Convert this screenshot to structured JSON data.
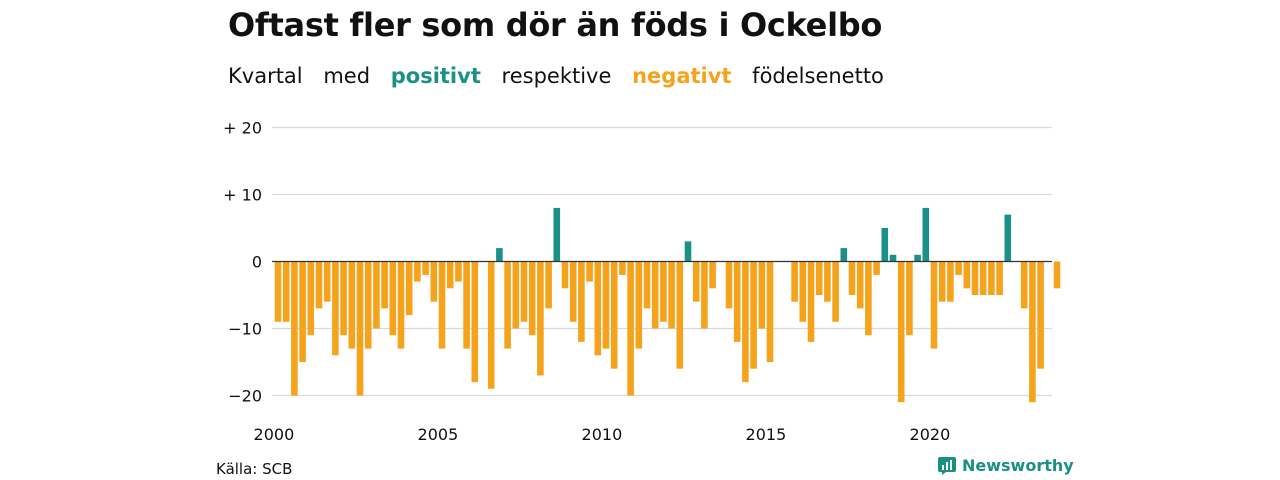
{
  "title": "Oftast fler som dör än föds i Ockelbo",
  "subtitle": {
    "part1": "Kvartal",
    "part2": "med",
    "positive_word": "positivt",
    "part3": "respektive",
    "negative_word": "negativt",
    "part4": "födelsenetto"
  },
  "source": "Källa: SCB",
  "brand": {
    "name": "Newsworthy",
    "icon": "newsworthy-logo-icon"
  },
  "colors": {
    "positive": "#1a9088",
    "negative": "#f5a21c",
    "grid": "#d9d9d9",
    "zero": "#333333"
  },
  "chart_data": {
    "type": "bar",
    "title": "Oftast fler som dör än föds i Ockelbo",
    "xlabel": "",
    "ylabel": "",
    "ylim": [
      -22,
      20
    ],
    "y_ticks": [
      20,
      10,
      0,
      -10,
      -20
    ],
    "y_tick_labels": [
      "+ 20",
      "+ 10",
      "0",
      "−10",
      "−20"
    ],
    "x_ticks": [
      2000,
      2005,
      2010,
      2015,
      2020
    ],
    "x_tick_labels": [
      "2000",
      "2005",
      "2010",
      "2015",
      "2020"
    ],
    "start": "2000 Q1",
    "frequency": "quarterly",
    "values": [
      -9,
      -9,
      -20,
      -15,
      -11,
      -7,
      -6,
      -14,
      -11,
      -13,
      -20,
      -13,
      -10,
      -7,
      -11,
      -13,
      -8,
      -3,
      -2,
      -6,
      -13,
      -4,
      -3,
      -13,
      -18,
      0,
      -19,
      2,
      -13,
      -10,
      -9,
      -11,
      -17,
      -7,
      8,
      -4,
      -9,
      -12,
      -3,
      -14,
      -13,
      -16,
      -2,
      -20,
      -13,
      -7,
      -10,
      -9,
      -10,
      -16,
      3,
      -6,
      -10,
      -4,
      0,
      -7,
      -12,
      -18,
      -16,
      -10,
      -15,
      0,
      0,
      -6,
      -9,
      -12,
      -5,
      -6,
      -9,
      2,
      -5,
      -7,
      -11,
      -2,
      5,
      1,
      -21,
      -11,
      1,
      8,
      -13,
      -6,
      -6,
      -2,
      -4,
      -5,
      -5,
      -5,
      -5,
      7,
      0,
      -7,
      -21,
      -16,
      0,
      -4
    ],
    "grid": true,
    "legend": "none"
  }
}
